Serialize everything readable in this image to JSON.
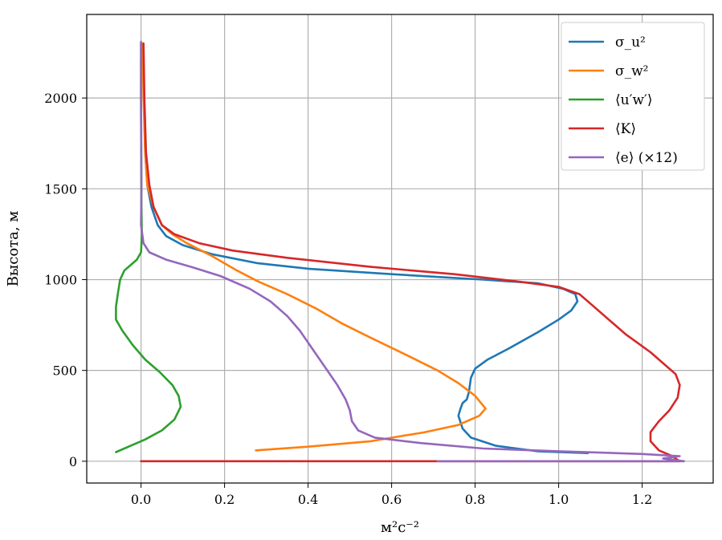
{
  "chart_data": {
    "type": "line",
    "title": "",
    "xlabel": "м²с⁻²",
    "ylabel": "Высота, м",
    "xlim": [
      -0.13,
      1.37
    ],
    "ylim": [
      -120,
      2460
    ],
    "xticks": [
      0.0,
      0.2,
      0.4,
      0.6,
      0.8,
      1.0,
      1.2
    ],
    "xtick_labels": [
      "0.0",
      "0.2",
      "0.4",
      "0.6",
      "0.8",
      "1.0",
      "1.2"
    ],
    "yticks": [
      0,
      500,
      1000,
      1500,
      2000
    ],
    "ytick_labels": [
      "0",
      "500",
      "1000",
      "1500",
      "2000"
    ],
    "grid": true,
    "legend_position": "top-right",
    "series": [
      {
        "name": "σ_u²",
        "color": "#1f77b4",
        "points": [
          [
            1.07,
            45
          ],
          [
            0.95,
            55
          ],
          [
            0.85,
            85
          ],
          [
            0.79,
            130
          ],
          [
            0.77,
            180
          ],
          [
            0.76,
            250
          ],
          [
            0.765,
            290
          ],
          [
            0.77,
            320
          ],
          [
            0.78,
            340
          ],
          [
            0.785,
            380
          ],
          [
            0.79,
            460
          ],
          [
            0.8,
            510
          ],
          [
            0.83,
            560
          ],
          [
            0.88,
            620
          ],
          [
            0.95,
            710
          ],
          [
            1.0,
            780
          ],
          [
            1.03,
            830
          ],
          [
            1.045,
            880
          ],
          [
            1.04,
            920
          ],
          [
            1.01,
            950
          ],
          [
            0.95,
            980
          ],
          [
            0.82,
            1000
          ],
          [
            0.6,
            1030
          ],
          [
            0.4,
            1060
          ],
          [
            0.28,
            1090
          ],
          [
            0.17,
            1140
          ],
          [
            0.1,
            1190
          ],
          [
            0.06,
            1240
          ],
          [
            0.04,
            1300
          ],
          [
            0.025,
            1400
          ],
          [
            0.015,
            1520
          ],
          [
            0.01,
            1700
          ],
          [
            0.007,
            2000
          ],
          [
            0.005,
            2300
          ]
        ]
      },
      {
        "name": "σ_w²",
        "color": "#ff7f0e",
        "points": [
          [
            0.275,
            60
          ],
          [
            0.4,
            80
          ],
          [
            0.55,
            110
          ],
          [
            0.68,
            160
          ],
          [
            0.76,
            200
          ],
          [
            0.81,
            250
          ],
          [
            0.825,
            290
          ],
          [
            0.8,
            360
          ],
          [
            0.76,
            430
          ],
          [
            0.71,
            500
          ],
          [
            0.64,
            580
          ],
          [
            0.55,
            680
          ],
          [
            0.48,
            760
          ],
          [
            0.42,
            840
          ],
          [
            0.35,
            920
          ],
          [
            0.28,
            990
          ],
          [
            0.23,
            1050
          ],
          [
            0.17,
            1130
          ],
          [
            0.11,
            1200
          ],
          [
            0.075,
            1250
          ],
          [
            0.05,
            1300
          ],
          [
            0.03,
            1400
          ],
          [
            0.015,
            1520
          ],
          [
            0.01,
            1700
          ],
          [
            0.006,
            2000
          ],
          [
            0.004,
            2300
          ]
        ]
      },
      {
        "name": "⟨u′w′⟩",
        "color": "#2ca02c",
        "points": [
          [
            -0.06,
            50
          ],
          [
            -0.03,
            80
          ],
          [
            0.01,
            120
          ],
          [
            0.05,
            170
          ],
          [
            0.08,
            230
          ],
          [
            0.095,
            300
          ],
          [
            0.09,
            360
          ],
          [
            0.075,
            420
          ],
          [
            0.045,
            490
          ],
          [
            0.01,
            560
          ],
          [
            -0.02,
            640
          ],
          [
            -0.045,
            720
          ],
          [
            -0.06,
            780
          ],
          [
            -0.06,
            850
          ],
          [
            -0.055,
            930
          ],
          [
            -0.05,
            1000
          ],
          [
            -0.04,
            1050
          ],
          [
            -0.025,
            1080
          ],
          [
            -0.01,
            1110
          ],
          [
            0.0,
            1150
          ],
          [
            0.002,
            1250
          ],
          [
            0.001,
            1400
          ],
          [
            0.0,
            2000
          ],
          [
            0.0,
            2300
          ]
        ]
      },
      {
        "name": "⟨K⟩",
        "color": "#d62728",
        "points": [
          [
            0.0,
            0
          ],
          [
            0.7,
            0
          ],
          [
            1.29,
            0
          ],
          [
            1.27,
            30
          ],
          [
            1.24,
            60
          ],
          [
            1.22,
            110
          ],
          [
            1.22,
            160
          ],
          [
            1.24,
            220
          ],
          [
            1.265,
            280
          ],
          [
            1.285,
            350
          ],
          [
            1.29,
            420
          ],
          [
            1.28,
            480
          ],
          [
            1.25,
            540
          ],
          [
            1.22,
            600
          ],
          [
            1.19,
            650
          ],
          [
            1.16,
            700
          ],
          [
            1.12,
            780
          ],
          [
            1.08,
            860
          ],
          [
            1.05,
            920
          ],
          [
            1.0,
            960
          ],
          [
            0.9,
            990
          ],
          [
            0.75,
            1030
          ],
          [
            0.55,
            1070
          ],
          [
            0.35,
            1120
          ],
          [
            0.22,
            1160
          ],
          [
            0.14,
            1200
          ],
          [
            0.08,
            1250
          ],
          [
            0.05,
            1300
          ],
          [
            0.03,
            1400
          ],
          [
            0.02,
            1520
          ],
          [
            0.012,
            1700
          ],
          [
            0.008,
            2000
          ],
          [
            0.006,
            2300
          ]
        ]
      },
      {
        "name": "⟨e⟩  (×12)",
        "color": "#9467bd",
        "points": [
          [
            0.71,
            0
          ],
          [
            1.3,
            0
          ],
          [
            1.25,
            15
          ],
          [
            1.29,
            28
          ],
          [
            1.2,
            40
          ],
          [
            1.0,
            55
          ],
          [
            0.82,
            70
          ],
          [
            0.67,
            100
          ],
          [
            0.56,
            130
          ],
          [
            0.52,
            170
          ],
          [
            0.505,
            220
          ],
          [
            0.5,
            280
          ],
          [
            0.49,
            340
          ],
          [
            0.47,
            420
          ],
          [
            0.44,
            520
          ],
          [
            0.41,
            620
          ],
          [
            0.38,
            720
          ],
          [
            0.35,
            800
          ],
          [
            0.31,
            880
          ],
          [
            0.26,
            950
          ],
          [
            0.19,
            1020
          ],
          [
            0.12,
            1070
          ],
          [
            0.06,
            1110
          ],
          [
            0.02,
            1150
          ],
          [
            0.006,
            1200
          ],
          [
            0.0,
            1300
          ],
          [
            0.001,
            1500
          ],
          [
            0.0,
            2000
          ],
          [
            0.0,
            2310
          ]
        ]
      }
    ]
  }
}
